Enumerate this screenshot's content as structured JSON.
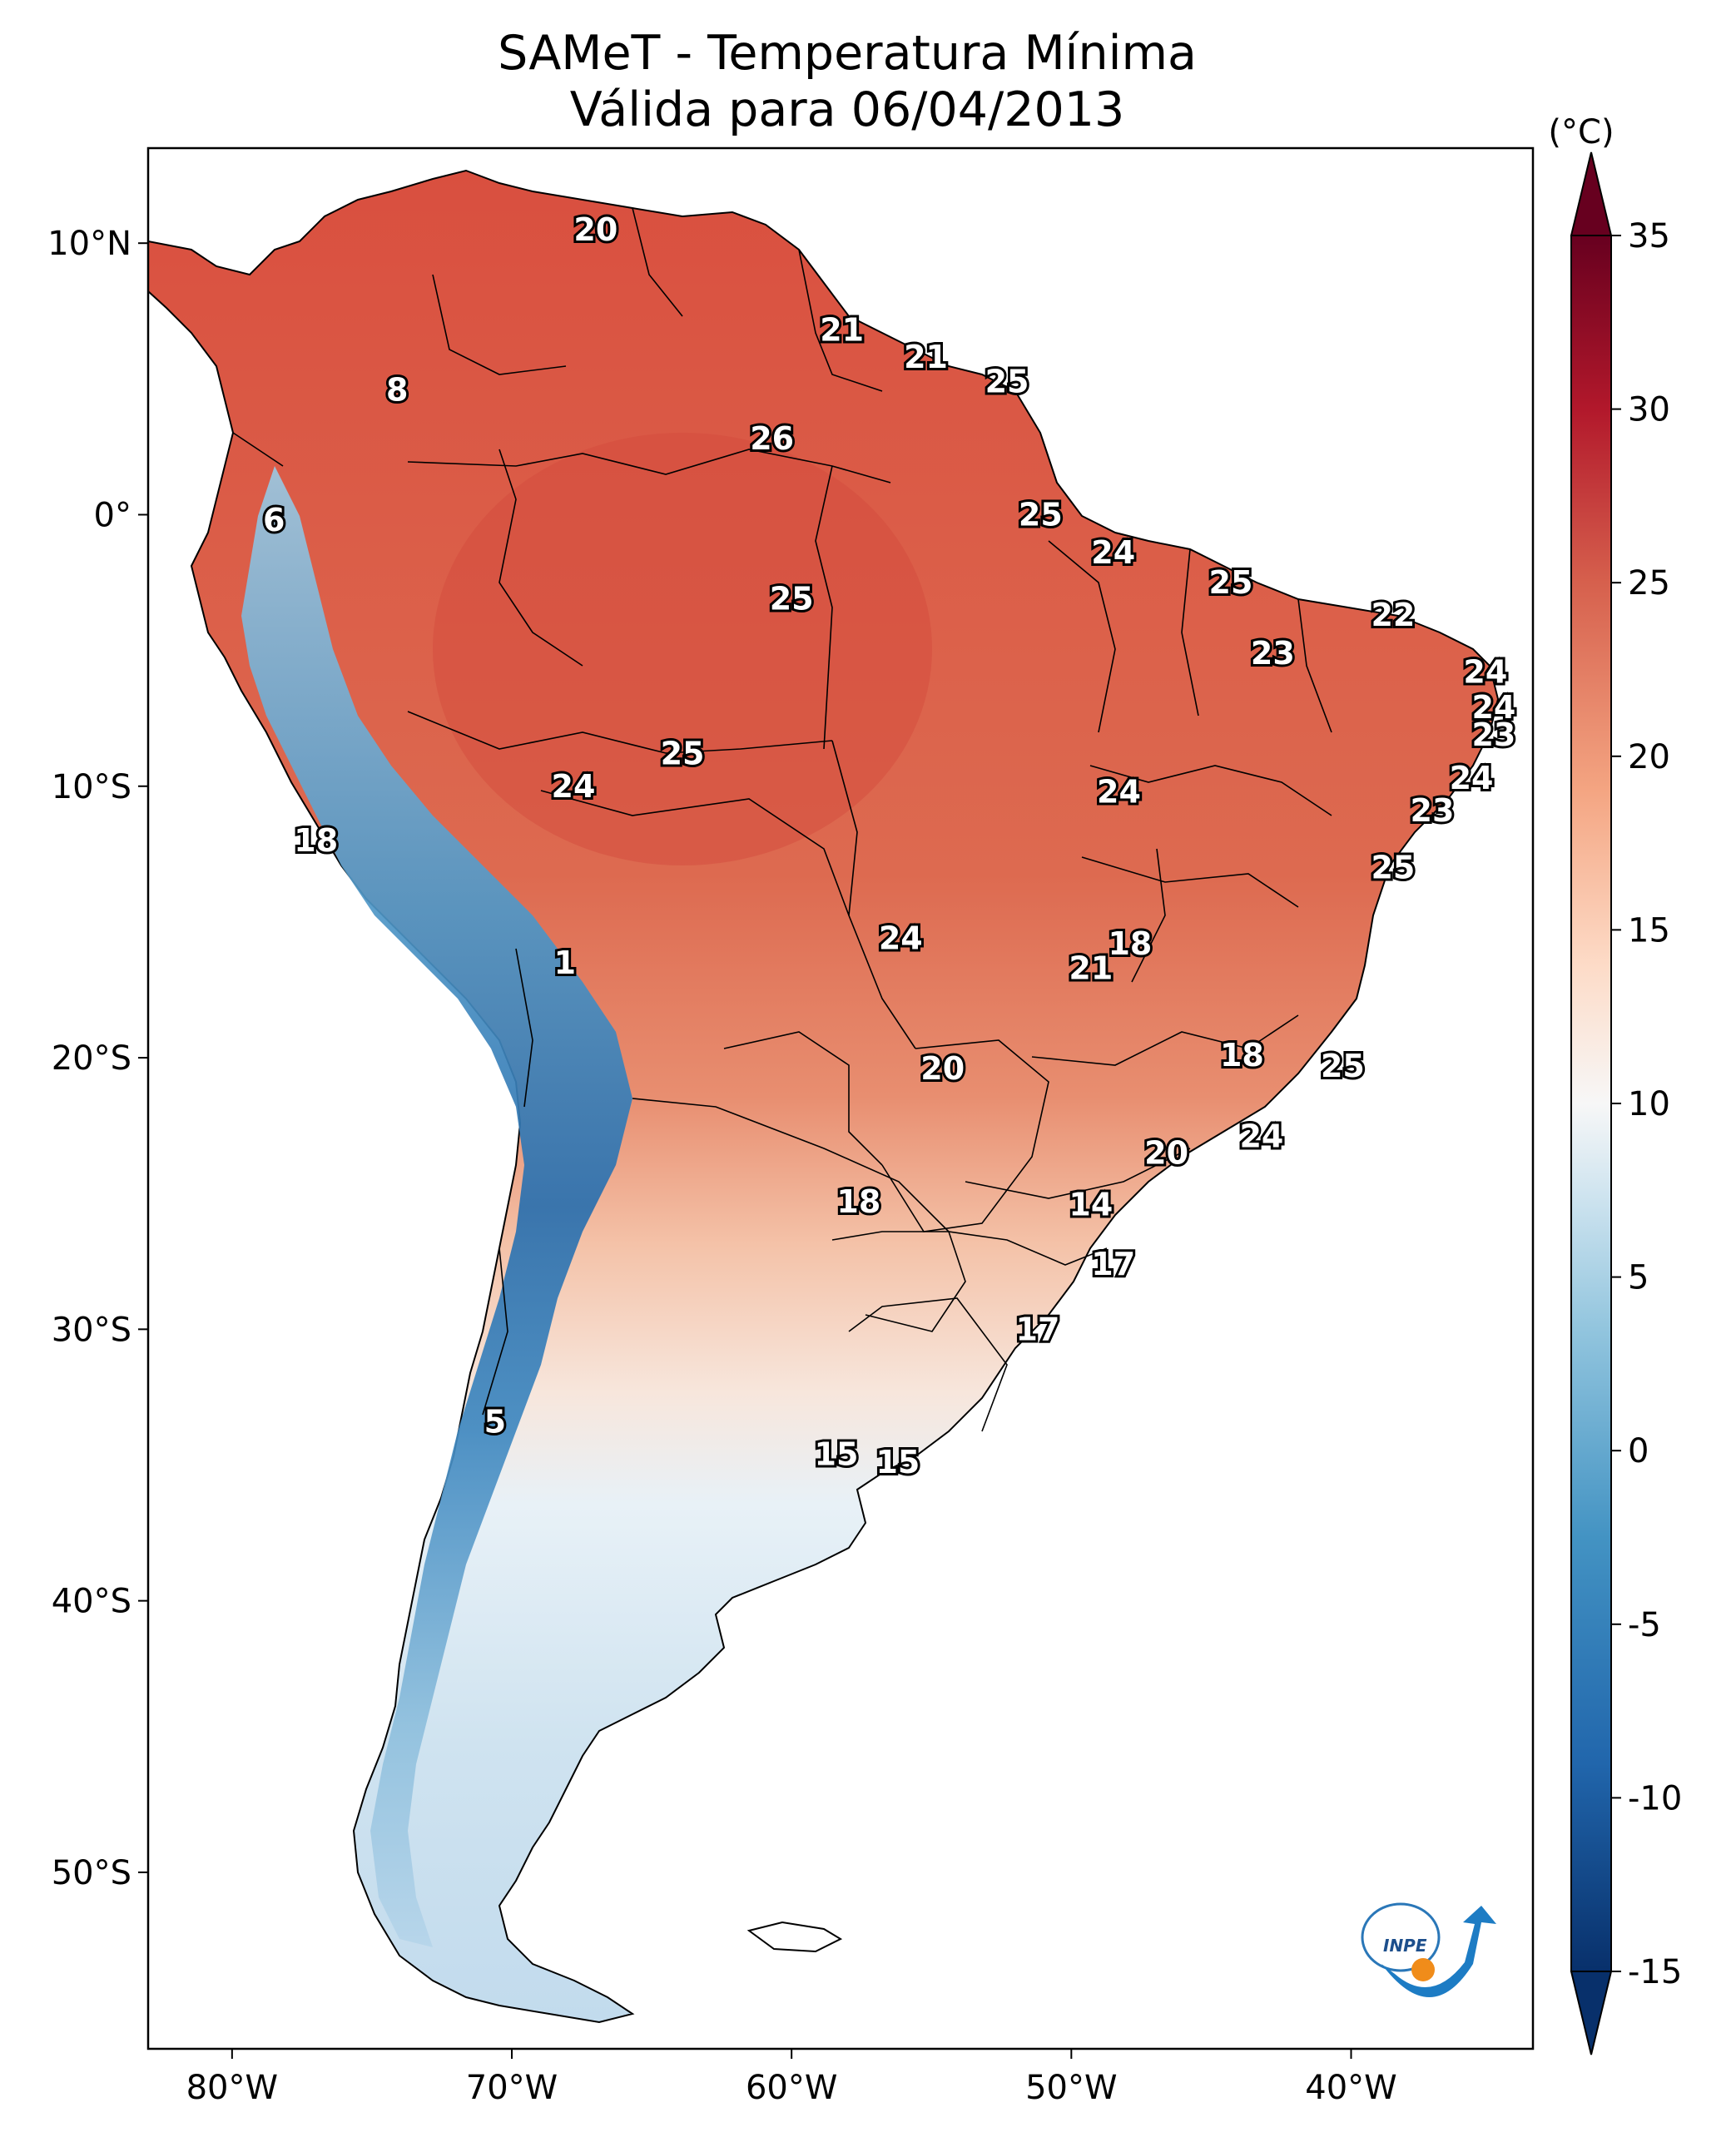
{
  "title_line1": "SAMeT - Temperatura Mínima",
  "title_line2": "Válida para 06/04/2013",
  "colorbar": {
    "unit": "(°C)",
    "ticks": [
      "35",
      "30",
      "25",
      "20",
      "15",
      "10",
      "5",
      "0",
      "-5",
      "-10",
      "-15"
    ],
    "range": [
      -15,
      35
    ],
    "colormap": "RdBu_r",
    "extend": "both"
  },
  "axes": {
    "lat_ticks": [
      "10°N",
      "0°",
      "10°S",
      "20°S",
      "30°S",
      "40°S",
      "50°S"
    ],
    "lon_ticks": [
      "80°W",
      "70°W",
      "60°W",
      "50°W",
      "40°W"
    ]
  },
  "logo_text": "INPE",
  "city_values": [
    {
      "lon": -67,
      "lat": 10.5,
      "value": "20"
    },
    {
      "lon": -58.2,
      "lat": 6.8,
      "value": "21"
    },
    {
      "lon": -55.2,
      "lat": 5.8,
      "value": "21"
    },
    {
      "lon": -52.3,
      "lat": 4.9,
      "value": "25"
    },
    {
      "lon": -74.1,
      "lat": 4.6,
      "value": "8"
    },
    {
      "lon": -60.7,
      "lat": 2.8,
      "value": "26"
    },
    {
      "lon": -78.5,
      "lat": -0.2,
      "value": "6"
    },
    {
      "lon": -51.1,
      "lat": 0.0,
      "value": "25"
    },
    {
      "lon": -48.5,
      "lat": -1.4,
      "value": "24"
    },
    {
      "lon": -60.0,
      "lat": -3.1,
      "value": "25"
    },
    {
      "lon": -44.3,
      "lat": -2.5,
      "value": "25"
    },
    {
      "lon": -38.5,
      "lat": -3.7,
      "value": "22"
    },
    {
      "lon": -42.8,
      "lat": -5.1,
      "value": "23"
    },
    {
      "lon": -35.2,
      "lat": -5.8,
      "value": "24"
    },
    {
      "lon": -34.9,
      "lat": -7.1,
      "value": "24"
    },
    {
      "lon": -35.7,
      "lat": -9.7,
      "value": "24"
    },
    {
      "lon": -34.9,
      "lat": -8.1,
      "value": "23"
    },
    {
      "lon": -63.9,
      "lat": -8.8,
      "value": "25"
    },
    {
      "lon": -67.8,
      "lat": -10.0,
      "value": "24"
    },
    {
      "lon": -48.3,
      "lat": -10.2,
      "value": "24"
    },
    {
      "lon": -37.1,
      "lat": -10.9,
      "value": "23"
    },
    {
      "lon": -77.0,
      "lat": -12.0,
      "value": "18"
    },
    {
      "lon": -38.5,
      "lat": -13.0,
      "value": "25"
    },
    {
      "lon": -47.9,
      "lat": -15.8,
      "value": "18"
    },
    {
      "lon": -56.1,
      "lat": -15.6,
      "value": "24"
    },
    {
      "lon": -49.3,
      "lat": -16.7,
      "value": "21"
    },
    {
      "lon": -68.1,
      "lat": -16.5,
      "value": "1"
    },
    {
      "lon": -43.9,
      "lat": -19.9,
      "value": "18"
    },
    {
      "lon": -40.3,
      "lat": -20.3,
      "value": "25"
    },
    {
      "lon": -54.6,
      "lat": -20.4,
      "value": "20"
    },
    {
      "lon": -43.2,
      "lat": -22.9,
      "value": "24"
    },
    {
      "lon": -46.6,
      "lat": -23.5,
      "value": "20"
    },
    {
      "lon": -49.3,
      "lat": -25.4,
      "value": "14"
    },
    {
      "lon": -57.6,
      "lat": -25.3,
      "value": "18"
    },
    {
      "lon": -48.5,
      "lat": -27.6,
      "value": "17"
    },
    {
      "lon": -51.2,
      "lat": -30.0,
      "value": "17"
    },
    {
      "lon": -70.6,
      "lat": -33.4,
      "value": "5"
    },
    {
      "lon": -58.4,
      "lat": -34.6,
      "value": "15"
    },
    {
      "lon": -56.2,
      "lat": -34.9,
      "value": "15"
    }
  ]
}
